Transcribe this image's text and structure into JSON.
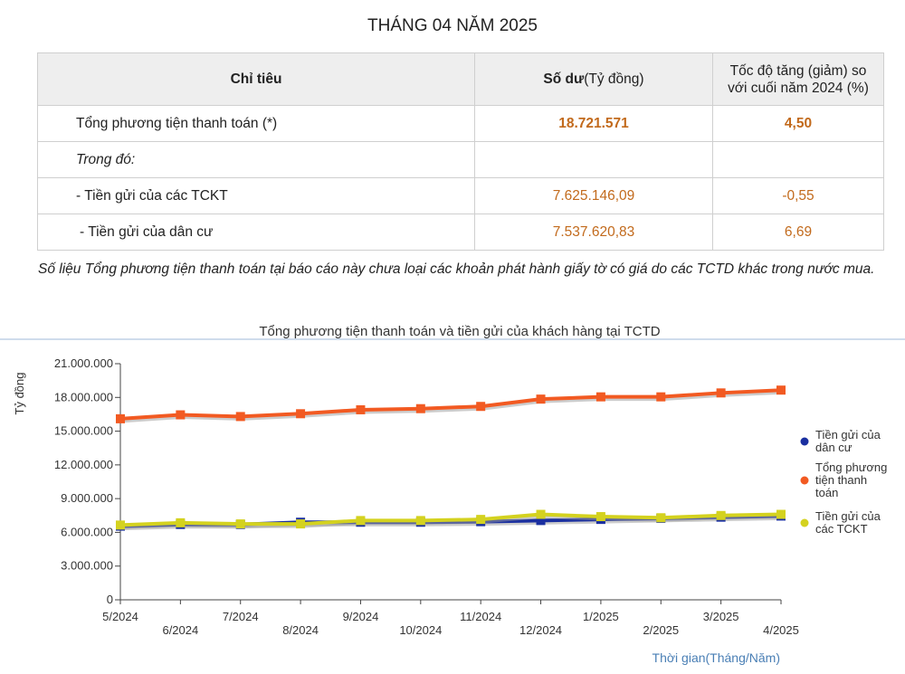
{
  "page_title": "THÁNG 04 NĂM 2025",
  "table": {
    "headers": {
      "col1": "Chỉ tiêu",
      "col2_bold": "Số dư",
      "col2_rest": "(Tỷ đồng)",
      "col3": "Tốc độ tăng (giảm) so với cuối năm 2024 (%)"
    },
    "rows": [
      {
        "label": "Tổng phương tiện thanh toán (*)",
        "balance": "18.721.571",
        "growth": "4,50"
      },
      {
        "label": "Trong đó:",
        "balance": "",
        "growth": ""
      },
      {
        "label": "- Tiền gửi của các TCKT",
        "balance": "7.625.146,09",
        "growth": "-0,55"
      },
      {
        "label": "- Tiền gửi của dân cư",
        "balance": "7.537.620,83",
        "growth": "6,69"
      }
    ]
  },
  "note": "Số liệu Tổng phương tiện thanh toán tại báo cáo này chưa loại các khoản phát hành giấy tờ có giá do các TCTD khác trong nước mua.",
  "chart_data": {
    "type": "line",
    "title": "Tổng phương tiện thanh toán và tiền gửi của khách hàng tại TCTD",
    "xlabel": "Thời gian(Tháng/Năm)",
    "ylabel": "Tỷ đồng",
    "categories": [
      "5/2024",
      "6/2024",
      "7/2024",
      "8/2024",
      "9/2024",
      "10/2024",
      "11/2024",
      "12/2024",
      "1/2025",
      "2/2025",
      "3/2025",
      "4/2025"
    ],
    "ylim": [
      0,
      21000000
    ],
    "yticks": [
      0,
      3000000,
      6000000,
      9000000,
      12000000,
      15000000,
      18000000,
      21000000
    ],
    "ytick_labels": [
      "0",
      "3.000.000",
      "6.000.000",
      "9.000.000",
      "12.000.000",
      "15.000.000",
      "18.000.000",
      "21.000.000"
    ],
    "grid": "none",
    "legend_position": "right",
    "series": [
      {
        "name": "Tiền gửi của dân cư",
        "color": "#1a2fa0",
        "values": [
          6550000,
          6700000,
          6700000,
          6900000,
          6900000,
          6900000,
          6950000,
          7050000,
          7150000,
          7250000,
          7350000,
          7450000
        ]
      },
      {
        "name": "Tổng phương tiện thanh toán",
        "color": "#f25a22",
        "values": [
          16100000,
          16450000,
          16300000,
          16550000,
          16900000,
          17000000,
          17200000,
          17850000,
          18050000,
          18050000,
          18400000,
          18650000
        ]
      },
      {
        "name": "Tiền gửi của các TCKT",
        "color": "#d4d21f",
        "values": [
          6650000,
          6850000,
          6750000,
          6750000,
          7050000,
          7050000,
          7150000,
          7600000,
          7400000,
          7300000,
          7500000,
          7600000
        ]
      }
    ]
  }
}
